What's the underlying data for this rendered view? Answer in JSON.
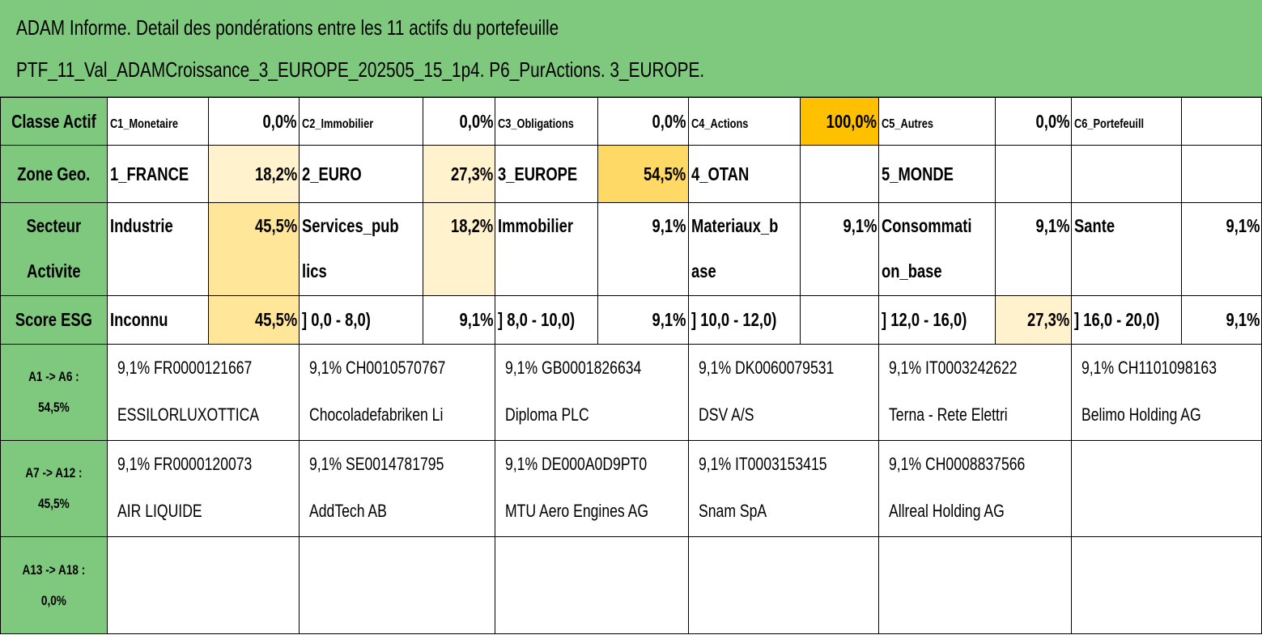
{
  "header": {
    "title": "ADAM Informe. Detail des pondérations entre les 11 actifs du portefeuille PTF_11_Val_ADAMCroissance_3_EUROPE_202505_15_1p4. P6_PurActions. 3_EUROPE."
  },
  "colors": {
    "header_green": "#7ec97e",
    "heat_full": "#ffc000",
    "heat_high": "#ffd966",
    "heat_mid": "#ffe699",
    "heat_low": "#fff2cc"
  },
  "classe_actif": {
    "label": "Classe Actif",
    "items": [
      {
        "name": "C1_Monetaire",
        "value": "0,0%"
      },
      {
        "name": "C2_Immobilier",
        "value": "0,0%"
      },
      {
        "name": "C3_Obligations",
        "value": "0,0%"
      },
      {
        "name": "C4_Actions",
        "value": "100,0%"
      },
      {
        "name": "C5_Autres",
        "value": "0,0%"
      },
      {
        "name": "C6_Portefeuill",
        "value": ""
      }
    ]
  },
  "zone_geo": {
    "label": "Zone Geo.",
    "items": [
      {
        "name": "1_FRANCE",
        "value": "18,2%"
      },
      {
        "name": "2_EURO",
        "value": "27,3%"
      },
      {
        "name": "3_EUROPE",
        "value": "54,5%"
      },
      {
        "name": "4_OTAN",
        "value": ""
      },
      {
        "name": "5_MONDE",
        "value": ""
      },
      {
        "name": "",
        "value": ""
      }
    ]
  },
  "secteur_activite": {
    "label": "Secteur Activite",
    "items": [
      {
        "name": "Industrie",
        "value": "45,5%"
      },
      {
        "name": "Services_pub lics",
        "value": "18,2%"
      },
      {
        "name": "Immobilier",
        "value": "9,1%"
      },
      {
        "name": "Materiaux_b ase",
        "value": "9,1%"
      },
      {
        "name": "Consommati on_base",
        "value": "9,1%"
      },
      {
        "name": "Sante",
        "value": "9,1%"
      }
    ]
  },
  "score_esg": {
    "label": "Score ESG",
    "items": [
      {
        "name": "Inconnu",
        "value": "45,5%"
      },
      {
        "name": "] 0,0 - 8,0)",
        "value": "9,1%"
      },
      {
        "name": "] 8,0 - 10,0)",
        "value": "9,1%"
      },
      {
        "name": "] 10,0 - 12,0)",
        "value": ""
      },
      {
        "name": "] 12,0 - 16,0)",
        "value": "27,3%"
      },
      {
        "name": "] 16,0 - 20,0)",
        "value": "9,1%"
      }
    ]
  },
  "asset_groups": [
    {
      "label_line1": "A1 -> A6 :",
      "label_line2": "54,5%",
      "assets": [
        {
          "line1": "9,1% FR0000121667",
          "line2": "ESSILORLUXOTTICA"
        },
        {
          "line1": "9,1% CH0010570767",
          "line2": "Chocoladefabriken Li"
        },
        {
          "line1": "9,1% GB0001826634",
          "line2": "Diploma PLC"
        },
        {
          "line1": "9,1% DK0060079531",
          "line2": "DSV A/S"
        },
        {
          "line1": "9,1% IT0003242622",
          "line2": "Terna - Rete Elettri"
        },
        {
          "line1": "9,1% CH1101098163",
          "line2": "Belimo Holding AG"
        }
      ]
    },
    {
      "label_line1": "A7 -> A12 :",
      "label_line2": "45,5%",
      "assets": [
        {
          "line1": "9,1% FR0000120073",
          "line2": "AIR LIQUIDE"
        },
        {
          "line1": "9,1% SE0014781795",
          "line2": "AddTech AB"
        },
        {
          "line1": "9,1% DE000A0D9PT0",
          "line2": "MTU Aero Engines AG"
        },
        {
          "line1": "9,1% IT0003153415",
          "line2": "Snam SpA"
        },
        {
          "line1": "9,1% CH0008837566",
          "line2": "Allreal Holding AG"
        },
        {
          "line1": "",
          "line2": ""
        }
      ]
    },
    {
      "label_line1": "A13 -> A18 :",
      "label_line2": "0,0%",
      "assets": [
        {
          "line1": "",
          "line2": ""
        },
        {
          "line1": "",
          "line2": ""
        },
        {
          "line1": "",
          "line2": ""
        },
        {
          "line1": "",
          "line2": ""
        },
        {
          "line1": "",
          "line2": ""
        },
        {
          "line1": "",
          "line2": ""
        }
      ]
    }
  ]
}
